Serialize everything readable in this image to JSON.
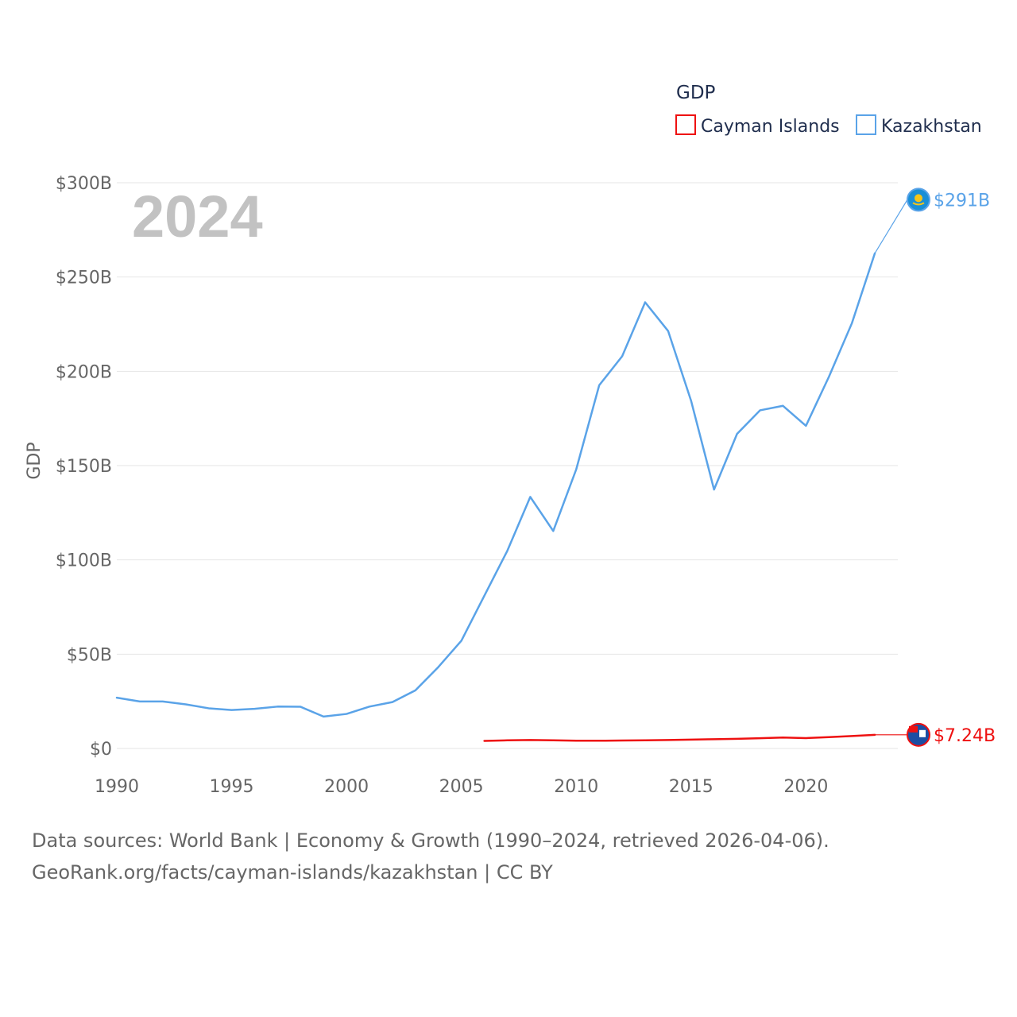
{
  "chart_data": {
    "type": "line",
    "overlay_year": "2024",
    "ylabel": "GDP",
    "xlabel": "",
    "xlim": [
      1990,
      2024
    ],
    "ylim": [
      0,
      300
    ],
    "x_ticks": [
      1990,
      1995,
      2000,
      2005,
      2010,
      2015,
      2020
    ],
    "x_tick_labels": [
      "1990",
      "1995",
      "2000",
      "2005",
      "2010",
      "2015",
      "2020"
    ],
    "y_ticks": [
      0,
      50,
      100,
      150,
      200,
      250,
      300
    ],
    "y_tick_labels": [
      "$0",
      "$50B",
      "$100B",
      "$150B",
      "$200B",
      "$250B",
      "$300B"
    ],
    "grid": true,
    "legend": {
      "title": "GDP",
      "placement": "top-right",
      "items": [
        "Cayman Islands",
        "Kazakhstan"
      ]
    },
    "series": [
      {
        "name": "Cayman Islands",
        "color": "#ee1111",
        "end_label": "$7.24B",
        "x": [
          2006,
          2007,
          2008,
          2009,
          2010,
          2011,
          2012,
          2013,
          2014,
          2015,
          2016,
          2017,
          2018,
          2019,
          2020,
          2021,
          2022,
          2023,
          2024
        ],
        "values": [
          4.0,
          4.3,
          4.5,
          4.3,
          4.1,
          4.1,
          4.2,
          4.3,
          4.5,
          4.7,
          4.9,
          5.1,
          5.4,
          5.8,
          5.5,
          6.0,
          6.6,
          7.24,
          7.24
        ]
      },
      {
        "name": "Kazakhstan",
        "color": "#5aa3e8",
        "end_label": "$291B",
        "x": [
          1990,
          1991,
          1992,
          1993,
          1994,
          1995,
          1996,
          1997,
          1998,
          1999,
          2000,
          2001,
          2002,
          2003,
          2004,
          2005,
          2006,
          2007,
          2008,
          2009,
          2010,
          2011,
          2012,
          2013,
          2014,
          2015,
          2016,
          2017,
          2018,
          2019,
          2020,
          2021,
          2022,
          2023,
          2024
        ],
        "values": [
          26.9,
          24.9,
          24.9,
          23.4,
          21.3,
          20.4,
          21.0,
          22.2,
          22.1,
          16.9,
          18.3,
          22.2,
          24.6,
          30.8,
          43.2,
          57.1,
          81.0,
          104.8,
          133.4,
          115.3,
          148.0,
          192.6,
          208.0,
          236.6,
          221.4,
          184.4,
          137.3,
          166.8,
          179.3,
          181.7,
          171.1,
          197.1,
          225.5,
          262.6,
          291.0
        ]
      }
    ]
  },
  "footer": {
    "line1": "Data sources: World Bank | Economy & Growth (1990–2024, retrieved 2026-04-06).",
    "line2": "GeoRank.org/facts/cayman-islands/kazakhstan | CC BY"
  }
}
